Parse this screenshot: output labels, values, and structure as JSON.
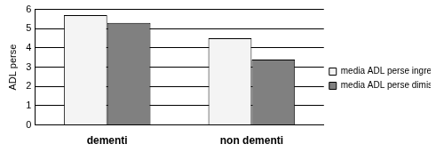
{
  "chart_data": {
    "type": "bar",
    "y_label": "ADL perse",
    "categories": [
      "dementi",
      "non dementi"
    ],
    "series": [
      {
        "name": "media ADL perse ingresso",
        "color": "#f4f4f4",
        "values": [
          5.7,
          4.5
        ]
      },
      {
        "name": "media ADL perse dimissione",
        "color": "#808080",
        "values": [
          5.3,
          3.4
        ]
      }
    ],
    "ylim": [
      0,
      6
    ],
    "yticks": [
      0,
      1,
      2,
      3,
      4,
      5,
      6
    ],
    "grid": true,
    "legend": "right"
  }
}
